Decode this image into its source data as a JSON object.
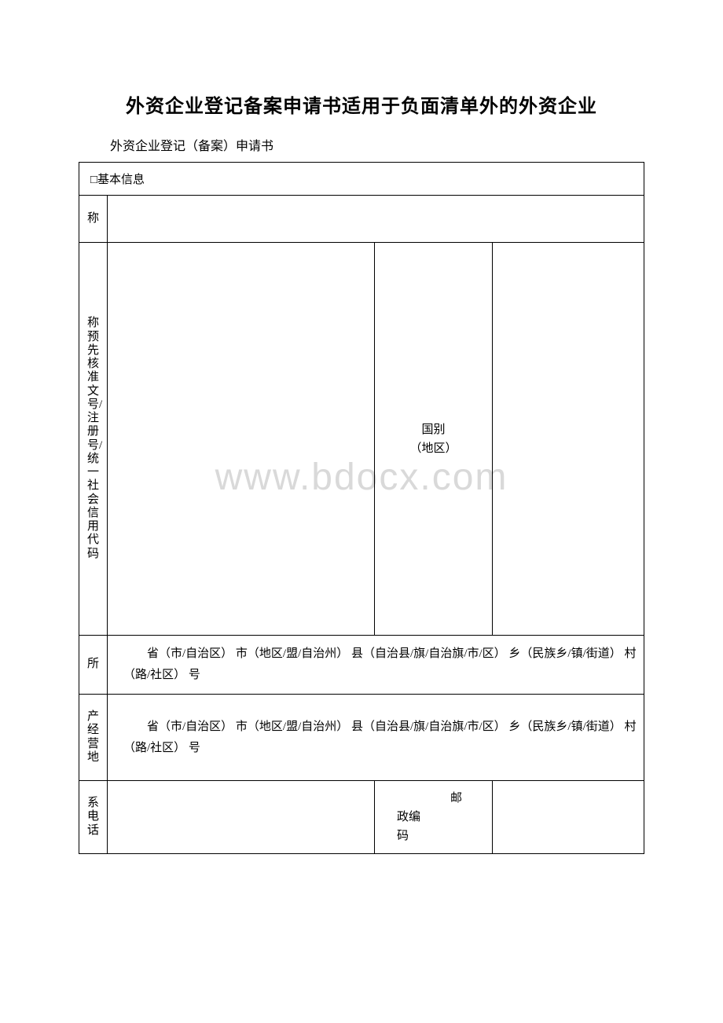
{
  "title": "外资企业登记备案申请书适用于负面清单外的外资企业",
  "subtitle": "外资企业登记（备案）申请书",
  "watermark": "www.bdocx.com",
  "section_header": "□基本信息",
  "rows": {
    "name_label": "称",
    "approval_label": "称预先核准文号/注册号/统一社会信用代码",
    "country_label_line1": "国别",
    "country_label_line2": "（地区）",
    "address_label": "所",
    "address_text": "　　省（市/自治区） 市（地区/盟/自治州） 县（自治县/旗/自治旗/市/区） 乡（民族乡/镇/街道） 村（路/社区） 号",
    "business_addr_label": "产经营地",
    "business_addr_text": "　　省（市/自治区） 市（地区/盟/自治州） 县（自治县/旗/自治旗/市/区） 乡（民族乡/镇/街道） 村（路/社区） 号",
    "phone_label": "系电话",
    "postcode_label": "邮政编码"
  },
  "colors": {
    "text": "#000000",
    "border": "#000000",
    "background": "#ffffff",
    "watermark": "#d9d9d9"
  }
}
